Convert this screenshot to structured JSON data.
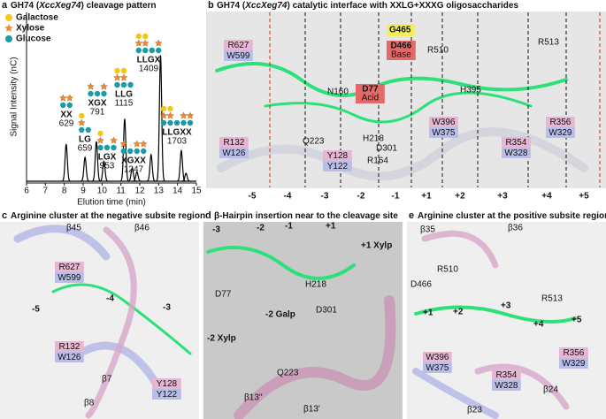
{
  "panel_a": {
    "letter": "a",
    "title": [
      "GH74 (",
      "XccXeg74",
      ") cleavage pattern"
    ],
    "legend": [
      "Galactose",
      "Xylose",
      "Glucose"
    ],
    "chart_data": {
      "type": "line",
      "xlabel": "Elution time (min)",
      "ylabel": "Signal Intensity (nC)",
      "xlim": [
        6,
        15
      ],
      "xticks": [
        6,
        7,
        8,
        9,
        10,
        11,
        12,
        13,
        14,
        15
      ],
      "ylim": [
        0,
        1
      ],
      "peaks": [
        {
          "x": 8.1,
          "height": 0.28,
          "label": "XX",
          "mass": "629"
        },
        {
          "x": 9.1,
          "height": 0.18,
          "label": "LG",
          "mass": "659"
        },
        {
          "x": 9.7,
          "height": 0.3,
          "label": "XGX",
          "mass": "791"
        },
        {
          "x": 10.1,
          "height": 0.15,
          "label": "LGX",
          "mass": "953"
        },
        {
          "x": 11.2,
          "height": 0.47,
          "label": "LLG",
          "mass": "1115"
        },
        {
          "x": 11.6,
          "height": 0.1,
          "label": "XGXX",
          "mass": "1247"
        },
        {
          "x": 11.85,
          "height": 0.07,
          "label": null,
          "mass": null
        },
        {
          "x": 12.6,
          "height": 0.2,
          "label": null,
          "mass": null
        },
        {
          "x": 13.1,
          "height": 0.95,
          "label": "LLGX",
          "mass": "1409"
        },
        {
          "x": 14.2,
          "height": 0.23,
          "label": "LLGXX",
          "mass": "1703"
        },
        {
          "x": 14.45,
          "height": 0.06,
          "label": null,
          "mass": null
        }
      ]
    }
  },
  "panel_b": {
    "letter": "b",
    "title": [
      "GH74 (",
      "XccXeg74",
      ") catalytic interface with XXLG+XXXG oligosaccharides"
    ],
    "pairs": [
      {
        "top": "R627",
        "bottom": "W599",
        "style": "residue"
      },
      {
        "top": "R132",
        "bottom": "W126",
        "style": "residue"
      },
      {
        "top": "Y128",
        "bottom": "Y122",
        "style": "residue"
      },
      {
        "top": "W396",
        "bottom": "W375",
        "style": "residue"
      },
      {
        "top": "R354",
        "bottom": "W328",
        "style": "residue"
      },
      {
        "top": "R356",
        "bottom": "W329",
        "style": "residue"
      },
      {
        "top": "D77",
        "bottom": "Acid",
        "style": "catalytic"
      },
      {
        "top": "D466",
        "bottom": "Base",
        "style": "catalytic"
      }
    ],
    "labels": [
      {
        "text": "G465",
        "box": "#f3ee5c"
      },
      {
        "text": "N160"
      },
      {
        "text": "Q223"
      },
      {
        "text": "H218"
      },
      {
        "text": "D301"
      },
      {
        "text": "R164"
      },
      {
        "text": "R510"
      },
      {
        "text": "H395"
      },
      {
        "text": "R513"
      }
    ],
    "subsites": [
      {
        "text": "-5",
        "color": "#e0201b"
      },
      {
        "text": "-4"
      },
      {
        "text": "-3"
      },
      {
        "text": "-2"
      },
      {
        "text": "-1"
      },
      {
        "text": "+1"
      },
      {
        "text": "+2"
      },
      {
        "text": "+3"
      },
      {
        "text": "+4"
      },
      {
        "text": "+5",
        "color": "#e0201b"
      }
    ]
  },
  "panel_c": {
    "letter": "c",
    "title": [
      "Arginine cluster at the negative subsite region"
    ],
    "pairs": [
      {
        "top": "R627",
        "bottom": "W599",
        "style": "residue"
      },
      {
        "top": "R132",
        "bottom": "W126",
        "style": "residue"
      },
      {
        "top": "Y128",
        "bottom": "Y122",
        "style": "residue"
      }
    ],
    "labels": [
      {
        "text": "β45"
      },
      {
        "text": "β46"
      },
      {
        "text": "β7"
      },
      {
        "text": "β8"
      },
      {
        "text": "-5",
        "color": "#e0201b"
      },
      {
        "text": "-4"
      },
      {
        "text": "-3"
      }
    ]
  },
  "panel_d": {
    "letter": "d",
    "title": [
      "β-Hairpin insertion near to the cleavage site"
    ],
    "pairs": [],
    "labels": [
      {
        "text": "-3"
      },
      {
        "text": "-2"
      },
      {
        "text": "-1"
      },
      {
        "text": "+1"
      },
      {
        "text": "+1 Xylp"
      },
      {
        "text": "D77"
      },
      {
        "text": "H218"
      },
      {
        "text": "-2 Galp"
      },
      {
        "text": "D301"
      },
      {
        "text": "-2 Xylp"
      },
      {
        "text": "Q223"
      },
      {
        "text": "β13''"
      },
      {
        "text": "β13'"
      }
    ]
  },
  "panel_e": {
    "letter": "e",
    "title": [
      "Arginine cluster at the positive subsite region"
    ],
    "pairs": [
      {
        "top": "W396",
        "bottom": "W375",
        "style": "residue"
      },
      {
        "top": "R356",
        "bottom": "W329",
        "style": "residue"
      },
      {
        "top": "R354",
        "bottom": "W328",
        "style": "residue"
      }
    ],
    "labels": [
      {
        "text": "β35"
      },
      {
        "text": "β36"
      },
      {
        "text": "R510"
      },
      {
        "text": "R513"
      },
      {
        "text": "D466"
      },
      {
        "text": "+1"
      },
      {
        "text": "+2"
      },
      {
        "text": "+3"
      },
      {
        "text": "+4"
      },
      {
        "text": "+5",
        "color": "#e0201b"
      },
      {
        "text": "β24"
      },
      {
        "text": "β23"
      }
    ]
  }
}
